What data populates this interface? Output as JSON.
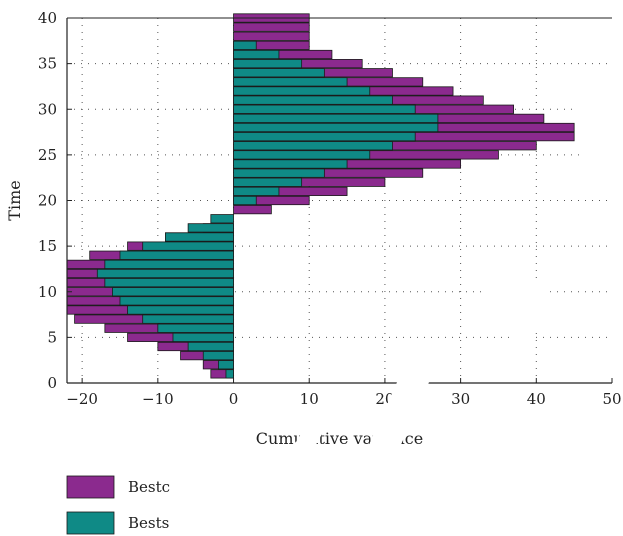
{
  "chart_data": {
    "type": "bar",
    "orientation": "horizontal",
    "xlabel": "Cumulative variance",
    "ylabel": "Time",
    "xlim": [
      -22,
      50
    ],
    "ylim": [
      0,
      40
    ],
    "xticks": [
      -20,
      -10,
      0,
      10,
      20,
      30,
      40,
      50
    ],
    "yticks": [
      0,
      5,
      10,
      15,
      20,
      25,
      30,
      35,
      40
    ],
    "grid": true,
    "legend_position": "bottom-left",
    "colors": {
      "bestc": "#8b2a8e",
      "bests": "#0f8a86"
    },
    "times": [
      1,
      2,
      3,
      4,
      5,
      6,
      7,
      8,
      9,
      10,
      11,
      12,
      13,
      14,
      15,
      16,
      17,
      18,
      19,
      20,
      21,
      22,
      23,
      24,
      25,
      26,
      27,
      28,
      29,
      30,
      31,
      32,
      33,
      34,
      35,
      36,
      37,
      38,
      39,
      40
    ],
    "series": [
      {
        "name": "Bestc",
        "values": [
          -3,
          -4,
          -7,
          -10,
          -14,
          -17,
          -21,
          -22,
          -22,
          -22,
          -22,
          -22,
          -22,
          -19,
          -14,
          -9,
          -4,
          0,
          5,
          10,
          15,
          20,
          25,
          30,
          35,
          40,
          45,
          45,
          41,
          37,
          33,
          29,
          25,
          21,
          17,
          13,
          10,
          10,
          10,
          10
        ]
      },
      {
        "name": "Bests",
        "values": [
          -1,
          -2,
          -4,
          -6,
          -8,
          -10,
          -12,
          -14,
          -15,
          -16,
          -17,
          -18,
          -17,
          -15,
          -12,
          -9,
          -6,
          -3,
          0,
          3,
          6,
          9,
          12,
          15,
          18,
          21,
          24,
          27,
          27,
          24,
          21,
          18,
          15,
          12,
          9,
          6,
          3,
          0,
          0,
          0
        ]
      }
    ]
  }
}
